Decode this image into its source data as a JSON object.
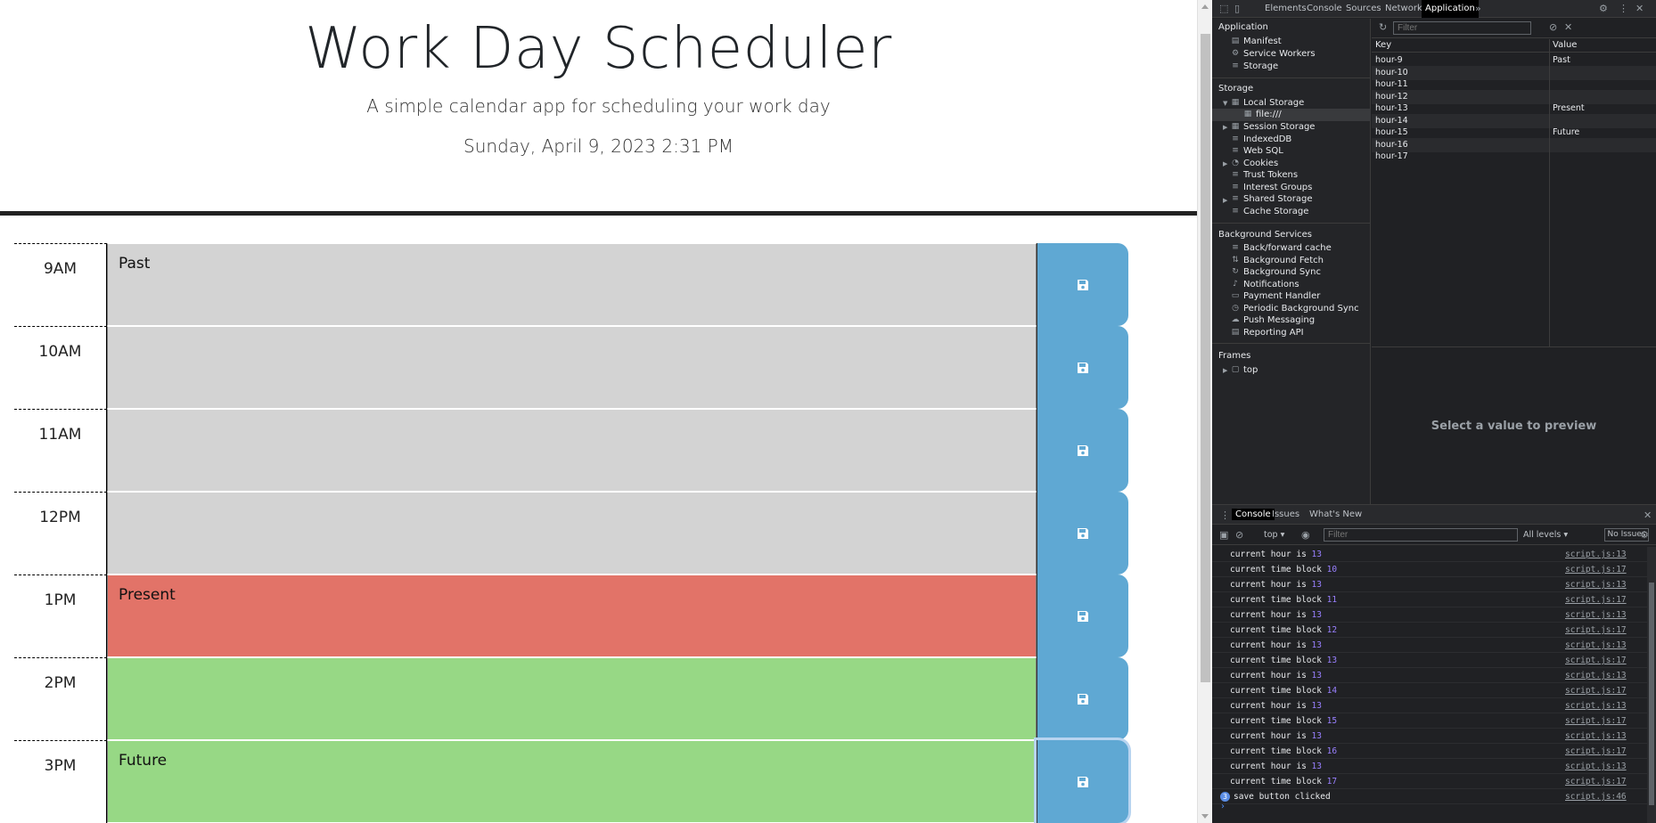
{
  "page": {
    "title": "Work Day Scheduler",
    "lead": "A simple calendar app for scheduling your work day",
    "current_day": "Sunday, April 9, 2023 2:31 PM",
    "time_blocks": [
      {
        "hour": "9AM",
        "text": "Past",
        "state": "past"
      },
      {
        "hour": "10AM",
        "text": "",
        "state": "past"
      },
      {
        "hour": "11AM",
        "text": "",
        "state": "past"
      },
      {
        "hour": "12PM",
        "text": "",
        "state": "past"
      },
      {
        "hour": "1PM",
        "text": "Present",
        "state": "present"
      },
      {
        "hour": "2PM",
        "text": "",
        "state": "future"
      },
      {
        "hour": "3PM",
        "text": "Future",
        "state": "future"
      }
    ],
    "colors": {
      "past": "#d3d3d3",
      "present": "#e27368",
      "future": "#97d885",
      "save": "#5fa8d3"
    }
  },
  "devtools": {
    "tabs": [
      "Elements",
      "Console",
      "Sources",
      "Network",
      "Application"
    ],
    "active_tab": "Application",
    "more": "»",
    "sidebar": {
      "application_header": "Application",
      "application_items": [
        "Manifest",
        "Service Workers",
        "Storage"
      ],
      "storage_header": "Storage",
      "storage_items": [
        "Local Storage",
        "file:///",
        "Session Storage",
        "IndexedDB",
        "Web SQL",
        "Cookies",
        "Trust Tokens",
        "Interest Groups",
        "Shared Storage",
        "Cache Storage"
      ],
      "background_header": "Background Services",
      "background_items": [
        "Back/forward cache",
        "Background Fetch",
        "Background Sync",
        "Notifications",
        "Payment Handler",
        "Periodic Background Sync",
        "Push Messaging",
        "Reporting API"
      ],
      "frames_header": "Frames",
      "frames_items": [
        "top"
      ]
    },
    "storage_table": {
      "filter_placeholder": "Filter",
      "key_header": "Key",
      "value_header": "Value",
      "rows": [
        {
          "key": "hour-9",
          "value": "Past"
        },
        {
          "key": "hour-10",
          "value": ""
        },
        {
          "key": "hour-11",
          "value": ""
        },
        {
          "key": "hour-12",
          "value": ""
        },
        {
          "key": "hour-13",
          "value": "Present"
        },
        {
          "key": "hour-14",
          "value": ""
        },
        {
          "key": "hour-15",
          "value": "Future"
        },
        {
          "key": "hour-16",
          "value": ""
        },
        {
          "key": "hour-17",
          "value": ""
        }
      ],
      "preview_text": "Select a value to preview"
    },
    "console": {
      "tabs": [
        "Console",
        "Issues",
        "What's New"
      ],
      "context": "top ▾",
      "filter_placeholder": "Filter",
      "levels": "All levels ▾",
      "issues": "No Issues",
      "lines": [
        {
          "text": "current hour is ",
          "num": "13",
          "src": "script.js:13"
        },
        {
          "text": "current time block ",
          "num": "10",
          "src": "script.js:17"
        },
        {
          "text": "current hour is ",
          "num": "13",
          "src": "script.js:13"
        },
        {
          "text": "current time block ",
          "num": "11",
          "src": "script.js:17"
        },
        {
          "text": "current hour is ",
          "num": "13",
          "src": "script.js:13"
        },
        {
          "text": "current time block ",
          "num": "12",
          "src": "script.js:17"
        },
        {
          "text": "current hour is ",
          "num": "13",
          "src": "script.js:13"
        },
        {
          "text": "current time block ",
          "num": "13",
          "src": "script.js:17"
        },
        {
          "text": "current hour is ",
          "num": "13",
          "src": "script.js:13"
        },
        {
          "text": "current time block ",
          "num": "14",
          "src": "script.js:17"
        },
        {
          "text": "current hour is ",
          "num": "13",
          "src": "script.js:13"
        },
        {
          "text": "current time block ",
          "num": "15",
          "src": "script.js:17"
        },
        {
          "text": "current hour is ",
          "num": "13",
          "src": "script.js:13"
        },
        {
          "text": "current time block ",
          "num": "16",
          "src": "script.js:17"
        },
        {
          "text": "current hour is ",
          "num": "13",
          "src": "script.js:13"
        },
        {
          "text": "current time block ",
          "num": "17",
          "src": "script.js:17"
        }
      ],
      "last_line": {
        "badge": "3",
        "text": "save button clicked",
        "src": "script.js:46"
      },
      "prompt": "›"
    }
  }
}
